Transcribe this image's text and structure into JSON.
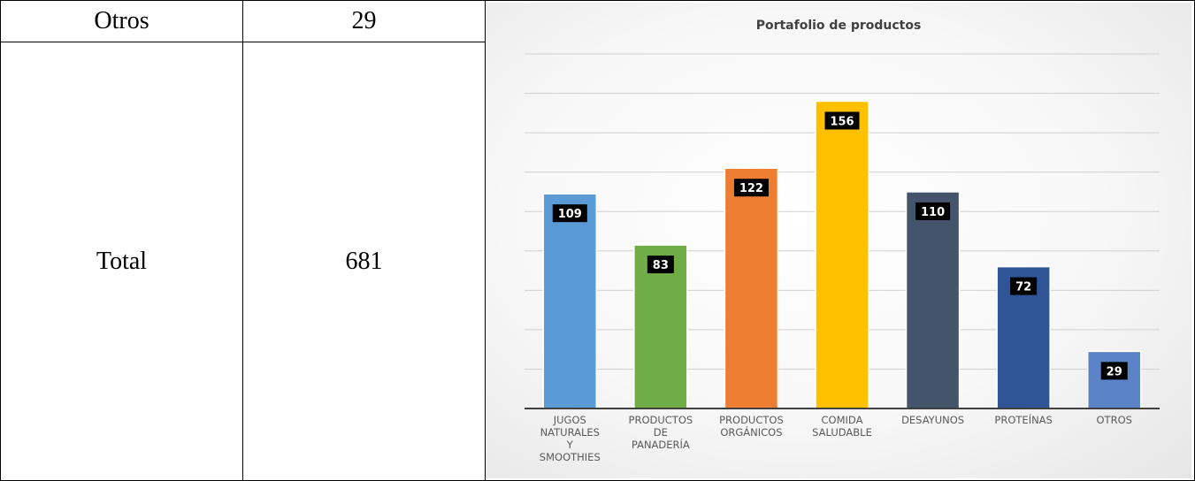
{
  "table": {
    "rows": [
      {
        "label": "Otros",
        "value": "29"
      },
      {
        "label": "Total",
        "value": "681"
      }
    ]
  },
  "chart_data": {
    "type": "bar",
    "title": "Portafolio de productos",
    "categories": [
      [
        "JUGOS",
        "NATURALES",
        "Y",
        "SMOOTHIES"
      ],
      [
        "PRODUCTOS",
        "DE",
        "PANADERÍA"
      ],
      [
        "PRODUCTOS",
        "ORGÁNICOS"
      ],
      [
        "COMIDA",
        "SALUDABLE"
      ],
      [
        "DESAYUNOS"
      ],
      [
        "PROTEÍNAS"
      ],
      [
        "OTROS"
      ]
    ],
    "values": [
      109,
      83,
      122,
      156,
      110,
      72,
      29
    ],
    "colors": [
      "#5B9BD5",
      "#70AD47",
      "#ED7D31",
      "#FFC000",
      "#44546A",
      "#2F5597",
      "#5B84C8"
    ],
    "ylim": [
      0,
      180
    ],
    "grid": true,
    "legend": false,
    "data_labels": true
  }
}
